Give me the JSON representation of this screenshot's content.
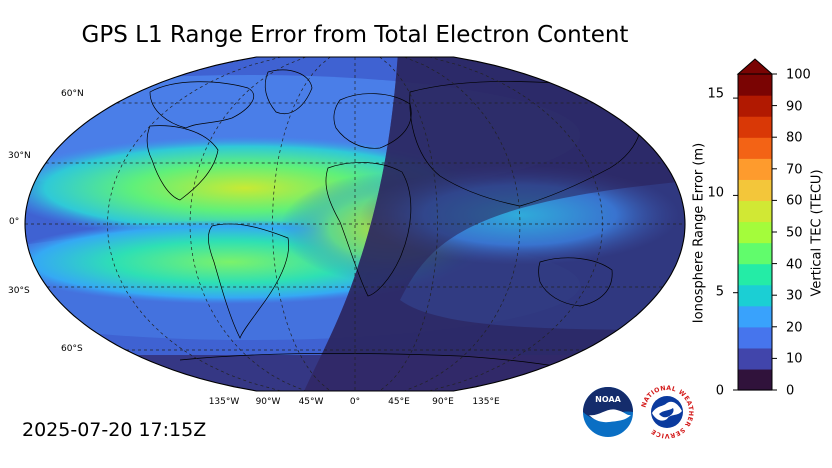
{
  "title": "GPS L1 Range Error from Total Electron Content",
  "timestamp": "2025-07-20 17:15Z",
  "map": {
    "lat_labels": [
      "60°N",
      "30°N",
      "0°",
      "30°S",
      "60°S"
    ],
    "lon_labels": [
      "135°W",
      "90°W",
      "45°W",
      "0°",
      "45°E",
      "90°E",
      "135°E"
    ]
  },
  "colorbar": {
    "left_label": "Ionosphere Range Error (m)",
    "right_label": "Vertical TEC (TECU)",
    "left_ticks": [
      "15",
      "10",
      "5",
      "0"
    ],
    "right_ticks": [
      "100",
      "90",
      "80",
      "70",
      "60",
      "50",
      "40",
      "30",
      "20",
      "10",
      "0"
    ],
    "colors": [
      "#30123b",
      "#4145ab",
      "#4675ed",
      "#39a2fc",
      "#1bcfd4",
      "#24eca6",
      "#61fc6c",
      "#a4fc3b",
      "#d1e834",
      "#f3c63a",
      "#fe9b2d",
      "#f36315",
      "#d93806",
      "#b11901",
      "#7a0403"
    ]
  },
  "logos": {
    "noaa_text": "NOAA",
    "nws_text": "NATIONAL WEATHER SERVICE"
  }
}
